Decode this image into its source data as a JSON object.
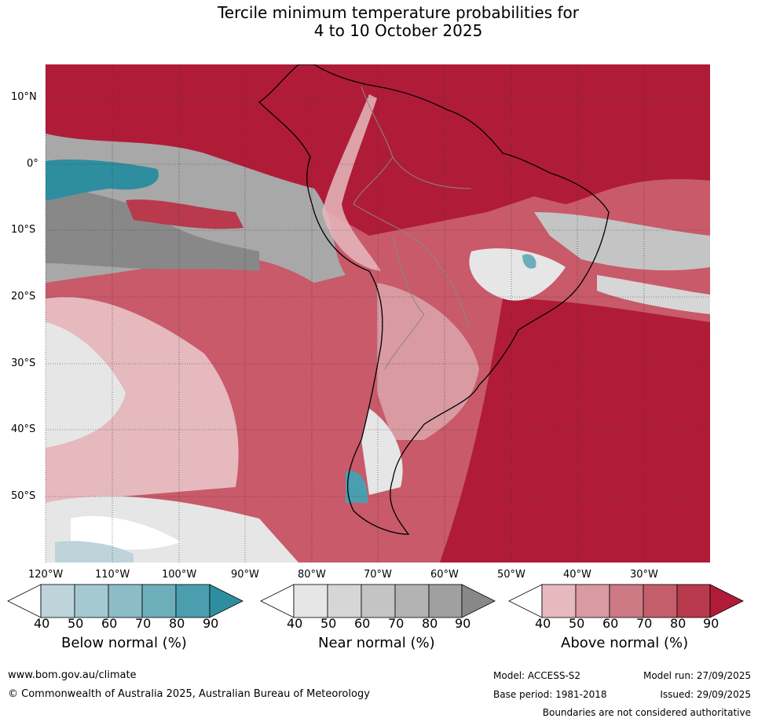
{
  "title": {
    "line1": "Tercile minimum temperature probabilities for",
    "line2": "4 to 10 October 2025"
  },
  "map": {
    "lat_labels": [
      "10°N",
      "0°",
      "10°S",
      "20°S",
      "30°S",
      "40°S",
      "50°S"
    ],
    "lon_labels": [
      "120°W",
      "110°W",
      "100°W",
      "90°W",
      "80°W",
      "70°W",
      "60°W",
      "50°W",
      "40°W",
      "30°W"
    ],
    "lon_range": [
      -120,
      -20
    ],
    "lat_range": [
      -60,
      15
    ]
  },
  "legends": {
    "below": {
      "title": "Below normal (%)",
      "ticks": [
        "40",
        "50",
        "60",
        "70",
        "80",
        "90"
      ],
      "colors": [
        "#bcd4da",
        "#a5c9d0",
        "#8cbcc5",
        "#6caeba",
        "#4a9eae",
        "#2e8ea0"
      ]
    },
    "near": {
      "title": "Near normal (%)",
      "ticks": [
        "40",
        "50",
        "60",
        "70",
        "80",
        "90"
      ],
      "colors": [
        "#e6e6e6",
        "#d6d6d6",
        "#c4c4c4",
        "#b3b3b3",
        "#a0a0a0",
        "#888888"
      ]
    },
    "above": {
      "title": "Above normal (%)",
      "ticks": [
        "40",
        "50",
        "60",
        "70",
        "80",
        "90"
      ],
      "colors": [
        "#e5b9bd",
        "#d99aa2",
        "#cd7a84",
        "#c35e6a",
        "#b83a4c",
        "#b01c38"
      ]
    }
  },
  "footer": {
    "website": "www.bom.gov.au/climate",
    "copyright": "© Commonwealth of Australia 2025, Australian Bureau of Meteorology",
    "model": "Model: ACCESS-S2",
    "base_period": "Base period: 1981-2018",
    "model_run": "Model run: 27/09/2025",
    "issued": "Issued: 29/09/2025",
    "boundaries": "Boundaries are not considered authoritative"
  }
}
